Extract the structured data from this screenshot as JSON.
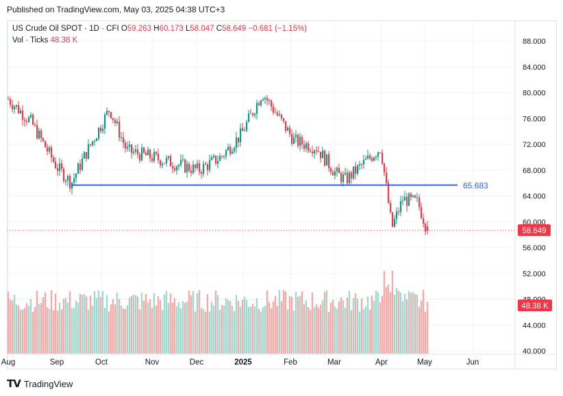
{
  "header": {
    "published": "Published on TradingView.com, May 03, 2025 04:38 UTC+3"
  },
  "legend": {
    "symbol": "US Crude Oil SPOT · 1D · CFI",
    "o_label": "O",
    "o_value": "59.263",
    "h_label": "H",
    "h_value": "60.173",
    "l_label": "L",
    "l_value": "58.047",
    "c_label": "C",
    "c_value": "58.649",
    "change": "−0.681 (−1.15%)",
    "vol_label": "Vol · Ticks",
    "vol_value": "48.38 K"
  },
  "footer": {
    "brand": "TradingView"
  },
  "colors": {
    "up": "#089981",
    "down": "#f23645",
    "level": "#2962ff",
    "vol_up": "#9ed8cf",
    "vol_down": "#f7a9a7"
  },
  "chart_data": {
    "type": "candlestick",
    "title": "US Crude Oil SPOT · 1D · CFI",
    "price_axis": {
      "ticks": [
        "88.000",
        "84.000",
        "80.000",
        "76.000",
        "72.000",
        "68.000",
        "64.000",
        "60.000",
        "56.000",
        "52.000",
        "48.000",
        "44.000",
        "40.000"
      ],
      "ylim": [
        39.2,
        90.8
      ]
    },
    "time_axis": {
      "labels": [
        "Aug",
        "Sep",
        "Oct",
        "Nov",
        "Dec",
        "2025",
        "Feb",
        "Mar",
        "Apr",
        "May",
        "Jun"
      ]
    },
    "horizontal_level": {
      "value": 65.683,
      "label": "65.683",
      "from_month": "Sep",
      "to_month": "May"
    },
    "last_price": {
      "value": 58.649,
      "label": "58.649"
    },
    "volume_axis": {
      "ticks_shared_with_price": true,
      "min_tick": 40.0,
      "last_label": "48.38 K"
    },
    "series_close": [
      {
        "date": "Aug",
        "close": 79.0
      },
      {
        "date": "Aug late",
        "close": 75.5
      },
      {
        "date": "Sep",
        "close": 68.5
      },
      {
        "date": "Sep mid",
        "close": 66.0
      },
      {
        "date": "Sep late",
        "close": 70.5
      },
      {
        "date": "Oct",
        "close": 77.5
      },
      {
        "date": "Oct mid",
        "close": 71.0
      },
      {
        "date": "Nov",
        "close": 70.0
      },
      {
        "date": "Nov mid",
        "close": 69.0
      },
      {
        "date": "Dec",
        "close": 68.0
      },
      {
        "date": "Dec mid",
        "close": 70.0
      },
      {
        "date": "2025",
        "close": 73.5
      },
      {
        "date": "Jan mid",
        "close": 80.0
      },
      {
        "date": "Feb",
        "close": 72.5
      },
      {
        "date": "Feb mid",
        "close": 71.5
      },
      {
        "date": "Mar",
        "close": 67.5
      },
      {
        "date": "Mar mid",
        "close": 66.5
      },
      {
        "date": "Apr",
        "close": 71.5
      },
      {
        "date": "Apr early",
        "close": 59.0
      },
      {
        "date": "Apr mid",
        "close": 63.5
      },
      {
        "date": "Apr late",
        "close": 63.0
      },
      {
        "date": "May",
        "close": 58.649
      }
    ],
    "extremes": {
      "high": 80.7,
      "low": 55.3
    }
  }
}
